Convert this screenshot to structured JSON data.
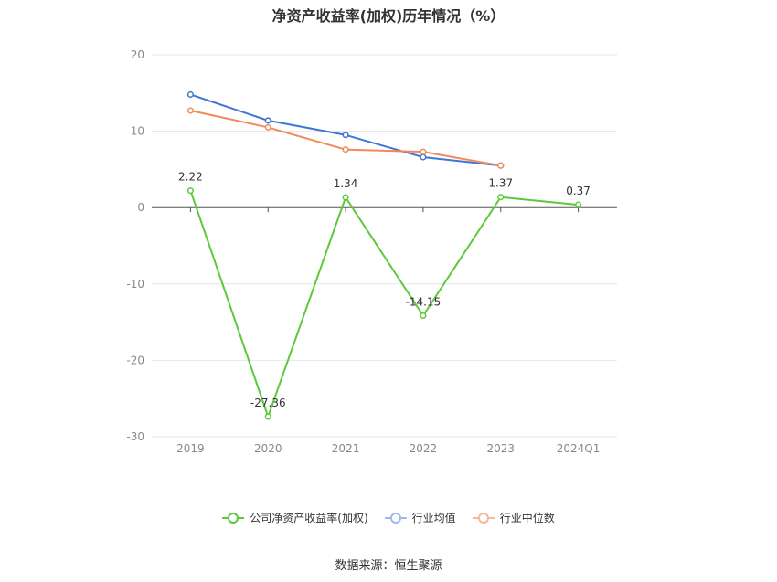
{
  "chart_data": {
    "type": "line",
    "title": "净资产收益率(加权)历年情况（%）",
    "categories": [
      "2019",
      "2020",
      "2021",
      "2022",
      "2023",
      "2024Q1"
    ],
    "ylim": [
      -30,
      20
    ],
    "yticks": [
      20,
      10,
      0,
      -10,
      -20,
      -30
    ],
    "grid": true,
    "legend_position": "bottom",
    "series": [
      {
        "name": "公司净资产收益率(加权)",
        "color": "#5cc93b",
        "values": [
          2.22,
          -27.36,
          1.34,
          -14.15,
          1.37,
          0.37
        ],
        "labels": [
          "2.22",
          "-27.36",
          "1.34",
          "-14.15",
          "1.37",
          "0.37"
        ]
      },
      {
        "name": "行业均值",
        "color": "#3e75d6",
        "values": [
          14.8,
          11.4,
          9.5,
          6.6,
          5.5,
          null
        ]
      },
      {
        "name": "行业中位数",
        "color": "#ef8a5b",
        "values": [
          12.7,
          10.5,
          7.6,
          7.3,
          5.5,
          null
        ]
      }
    ],
    "source": "数据来源：恒生聚源"
  }
}
